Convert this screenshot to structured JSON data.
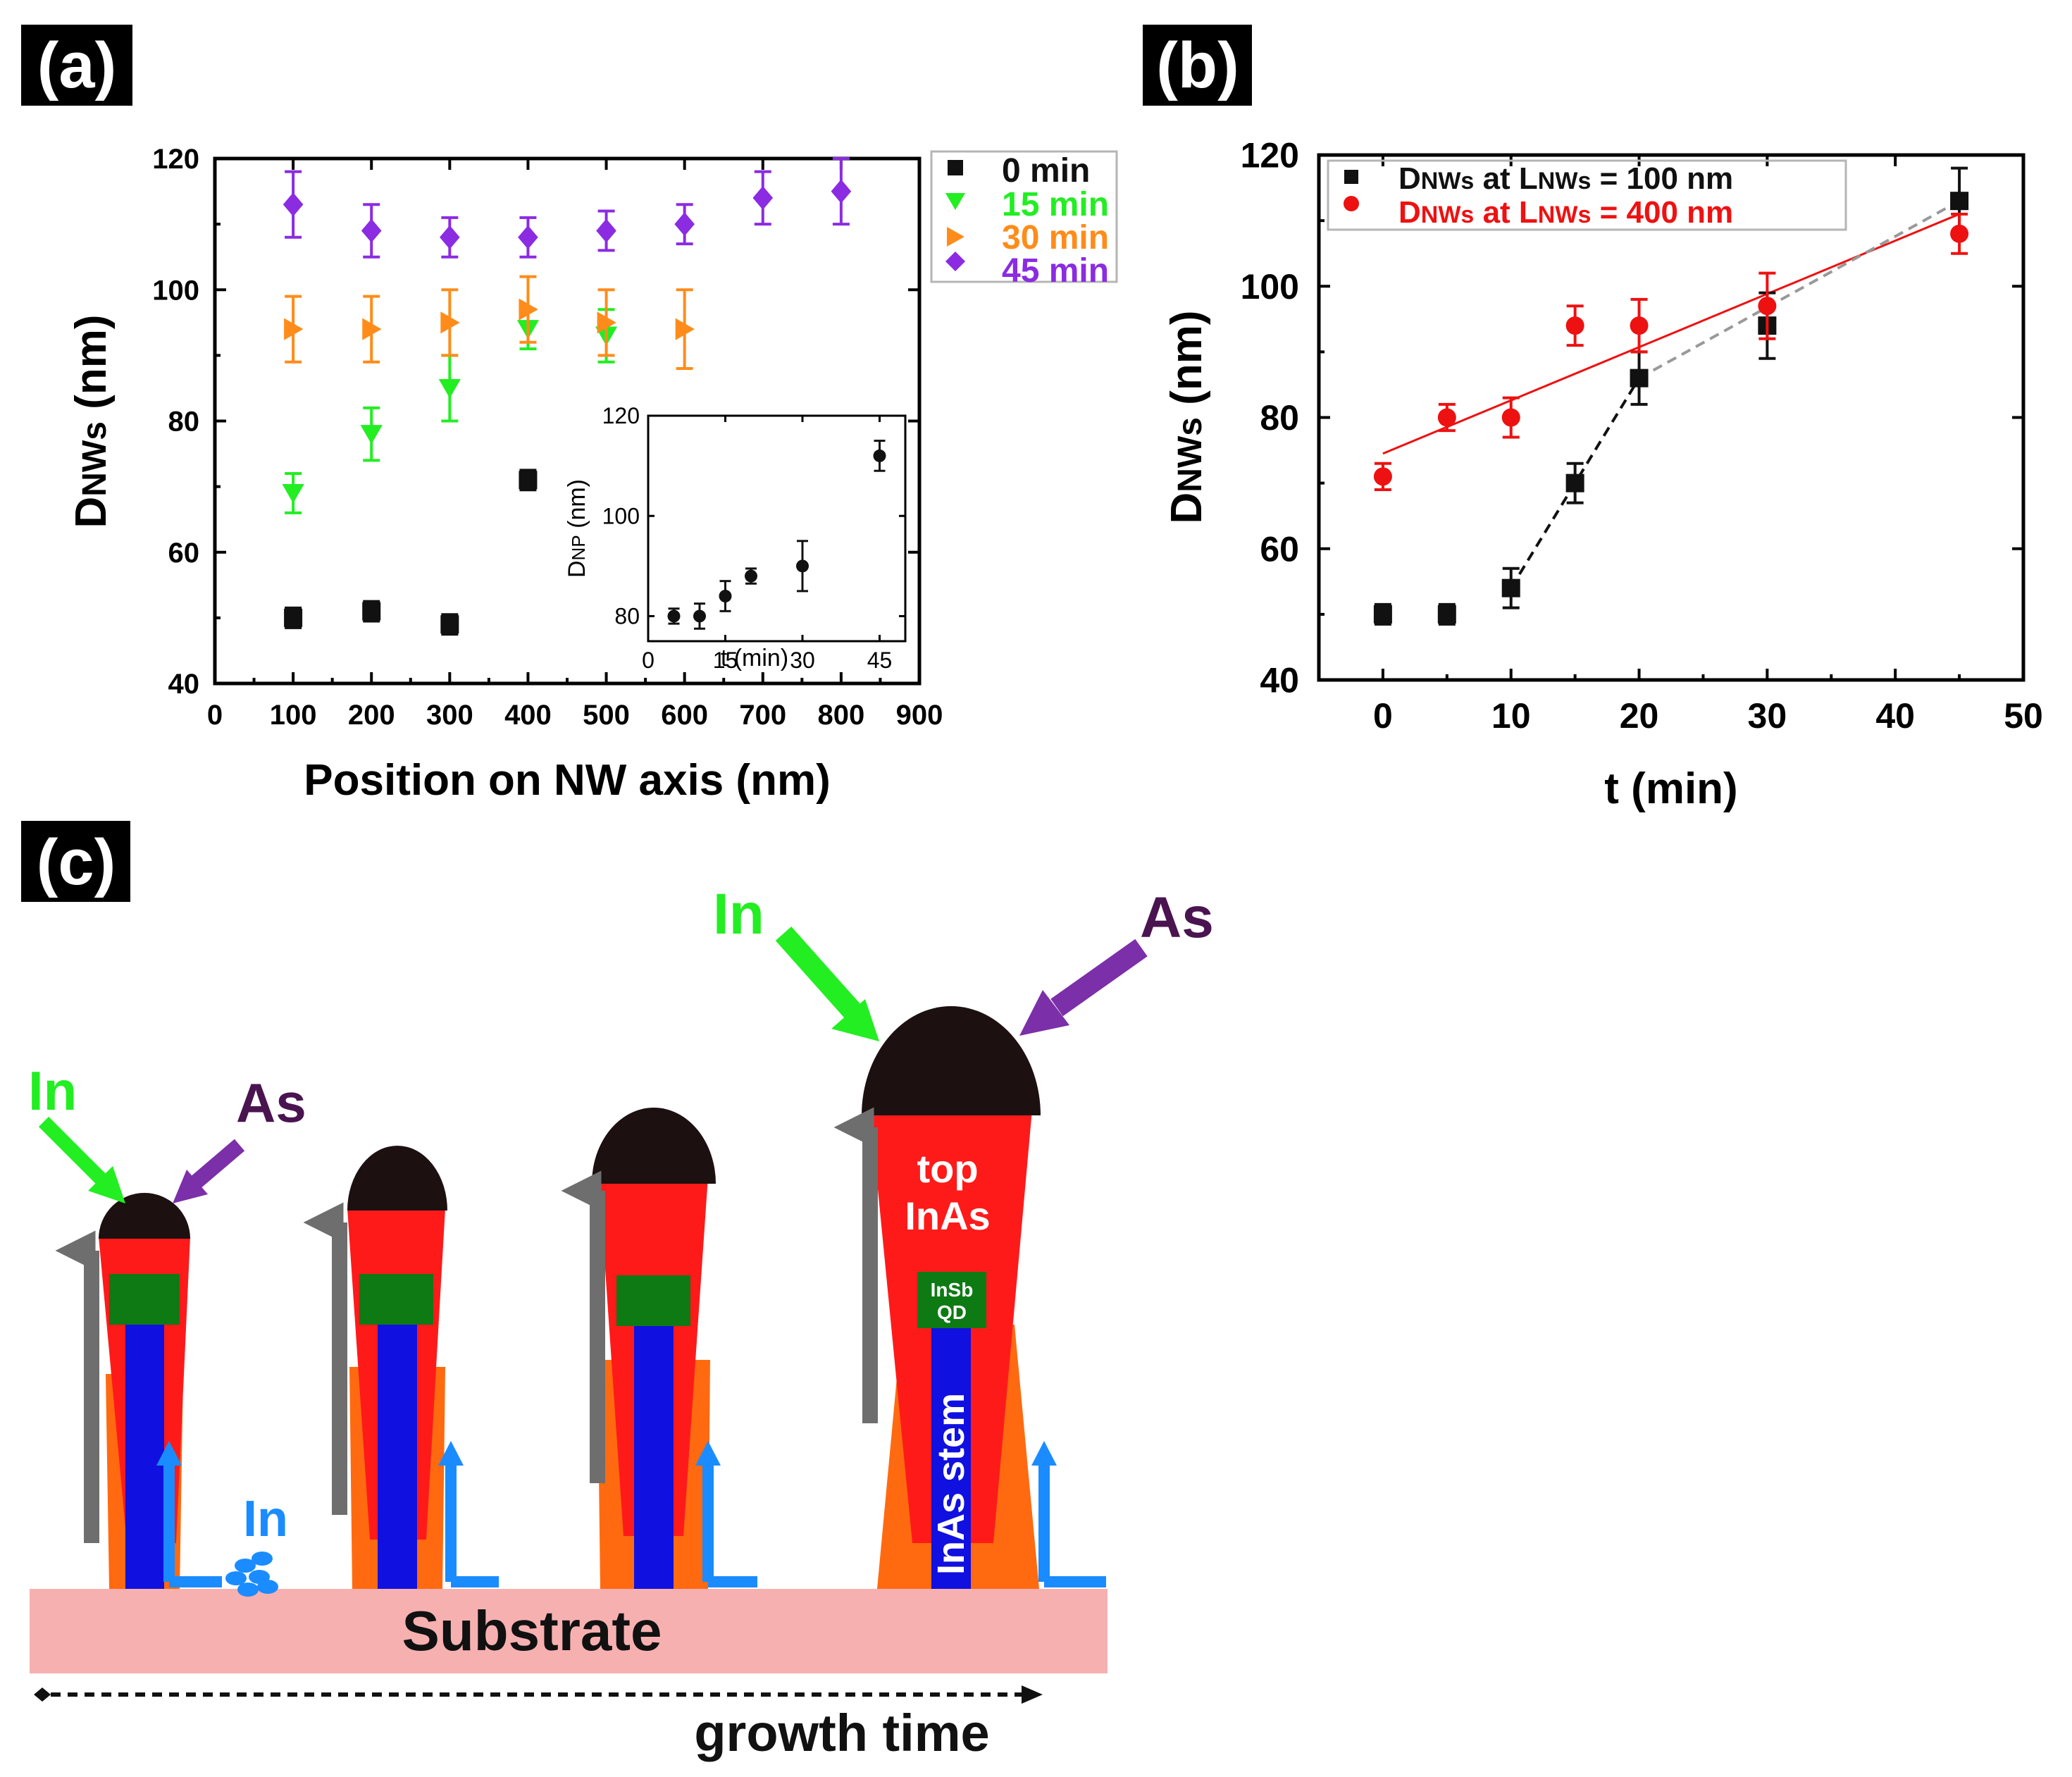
{
  "colors": {
    "black": "#111111",
    "green": "#22ee22",
    "orange": "#ff8c1a",
    "purple": "#8b2be2",
    "red": "#ee1111",
    "gray": "#999999",
    "nw_red": "#ff1a1a",
    "nw_orange": "#ff6a10",
    "nw_green": "#0e7a14",
    "nw_blue": "#1010e0",
    "droplet": "#1c1010",
    "arrow_gray": "#6e6e6e",
    "arrow_blue": "#1a8cff",
    "arrow_green": "#22ee22",
    "arrow_purple": "#7b2fa8",
    "as_text": "#4a1450",
    "substrate": "#f7b0b0"
  },
  "panel_labels": {
    "a": "(a)",
    "b": "(b)",
    "c": "(c)"
  },
  "chart_data": [
    {
      "id": "a",
      "type": "scatter",
      "xlabel": "Position on NW axis (nm)",
      "ylabel_main": "D",
      "ylabel_sub": "NWs",
      "ylabel_unit": "(nm)",
      "xlim": [
        0,
        900
      ],
      "ylim": [
        40,
        120
      ],
      "xticks": [
        0,
        100,
        200,
        300,
        400,
        500,
        600,
        700,
        800,
        900
      ],
      "yticks": [
        40,
        60,
        80,
        100,
        120
      ],
      "legend": "outside-top-right",
      "series": [
        {
          "name": "0 min",
          "marker": "square",
          "color": "#111111",
          "points": [
            [
              100,
              50,
              1.5
            ],
            [
              200,
              51,
              1.5
            ],
            [
              300,
              49,
              1.5
            ],
            [
              400,
              71,
              1.5
            ]
          ]
        },
        {
          "name": "15 min",
          "marker": "tri-down",
          "color": "#22ee22",
          "points": [
            [
              100,
              69,
              3
            ],
            [
              200,
              78,
              4
            ],
            [
              300,
              85,
              5
            ],
            [
              400,
              94,
              3
            ],
            [
              500,
              93,
              4
            ]
          ]
        },
        {
          "name": "30 min",
          "marker": "tri-right",
          "color": "#ff8c1a",
          "points": [
            [
              100,
              94,
              5
            ],
            [
              200,
              94,
              5
            ],
            [
              300,
              95,
              5
            ],
            [
              400,
              97,
              5
            ],
            [
              500,
              95,
              5
            ],
            [
              600,
              94,
              6
            ]
          ]
        },
        {
          "name": "45 min",
          "marker": "diamond",
          "color": "#8b2be2",
          "points": [
            [
              100,
              113,
              5
            ],
            [
              200,
              109,
              4
            ],
            [
              300,
              108,
              3
            ],
            [
              400,
              108,
              3
            ],
            [
              500,
              109,
              3
            ],
            [
              600,
              110,
              3
            ],
            [
              700,
              114,
              4
            ],
            [
              800,
              115,
              5
            ]
          ]
        }
      ],
      "inset": {
        "type": "scatter",
        "xlabel": "t (min)",
        "ylabel_main": "D",
        "ylabel_sub": "NP",
        "ylabel_unit": "(nm)",
        "xlim": [
          0,
          50
        ],
        "ylim": [
          75,
          120
        ],
        "xticks": [
          0,
          15,
          30,
          45
        ],
        "yticks": [
          80,
          100,
          120
        ],
        "points": [
          [
            5,
            80,
            1.5
          ],
          [
            10,
            80,
            2.5
          ],
          [
            15,
            84,
            3
          ],
          [
            20,
            88,
            1.5
          ],
          [
            30,
            90,
            5
          ],
          [
            45,
            112,
            3
          ]
        ]
      }
    },
    {
      "id": "b",
      "type": "scatter",
      "xlabel": "t (min)",
      "ylabel_main": "D",
      "ylabel_sub": "NWs",
      "ylabel_unit": "(nm)",
      "xlim": [
        -5,
        50
      ],
      "ylim": [
        40,
        120
      ],
      "xticks": [
        0,
        10,
        20,
        30,
        40,
        50
      ],
      "yticks": [
        40,
        60,
        80,
        100,
        120
      ],
      "legend": "top-left",
      "series": [
        {
          "legend_main": "D",
          "legend_sub": "NWs",
          "legend_mid": " at L",
          "legend_sub2": "NWs",
          "legend_end": " = 100 nm",
          "marker": "square",
          "color": "#111111",
          "points": [
            [
              0,
              50,
              1.5
            ],
            [
              5,
              50,
              1.5
            ],
            [
              10,
              54,
              3
            ],
            [
              15,
              70,
              3
            ],
            [
              20,
              86,
              4
            ],
            [
              30,
              94,
              5
            ],
            [
              45,
              113,
              5
            ]
          ]
        },
        {
          "legend_main": "D",
          "legend_sub": "NWs",
          "legend_mid": " at L",
          "legend_sub2": "NWs",
          "legend_end": " = 400 nm",
          "marker": "circle",
          "color": "#ee1111",
          "points": [
            [
              0,
              71,
              2
            ],
            [
              5,
              80,
              2
            ],
            [
              10,
              80,
              3
            ],
            [
              15,
              94,
              3
            ],
            [
              20,
              94,
              4
            ],
            [
              30,
              97,
              5
            ],
            [
              45,
              108,
              3
            ]
          ]
        }
      ],
      "fits": [
        {
          "color": "#ee1111",
          "style": "solid",
          "from": [
            0,
            74.5
          ],
          "to": [
            45,
            111
          ]
        },
        {
          "color": "#111111",
          "style": "dashed",
          "from": [
            10,
            54
          ],
          "to": [
            20,
            86
          ]
        },
        {
          "color": "#999999",
          "style": "dashed",
          "from": [
            20,
            86
          ],
          "to": [
            45,
            113
          ]
        }
      ]
    }
  ],
  "diagram_c": {
    "in_label": "In",
    "as_label": "As",
    "in_diffusion_label": "In",
    "top_label_line1": "top",
    "top_label_line2": "InAs",
    "qd_label_line1": "InSb",
    "qd_label_line2": "QD",
    "stem_label": "InAs stem",
    "substrate_label": "Substrate",
    "growth_label": "growth time"
  }
}
